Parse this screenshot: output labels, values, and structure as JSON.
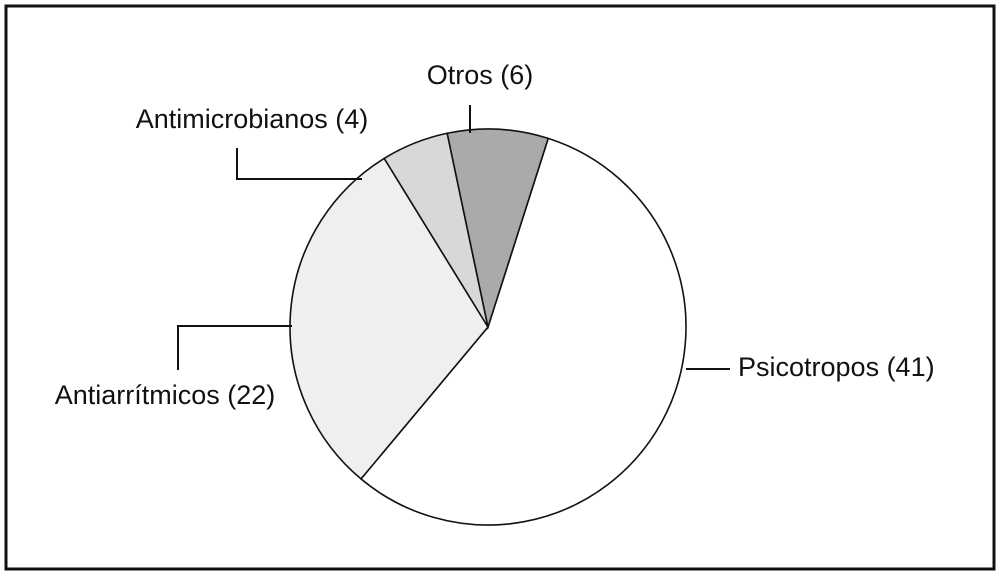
{
  "chart_data": {
    "type": "pie",
    "categories": [
      "Psicotropos (41)",
      "Antiarrítmicos (22)",
      "Antimicrobianos (4)",
      "Otros (6)"
    ],
    "values": [
      41,
      22,
      4,
      6
    ],
    "colors": [
      "#ffffff",
      "#efefef",
      "#d8d8d8",
      "#aaaaaa"
    ]
  }
}
